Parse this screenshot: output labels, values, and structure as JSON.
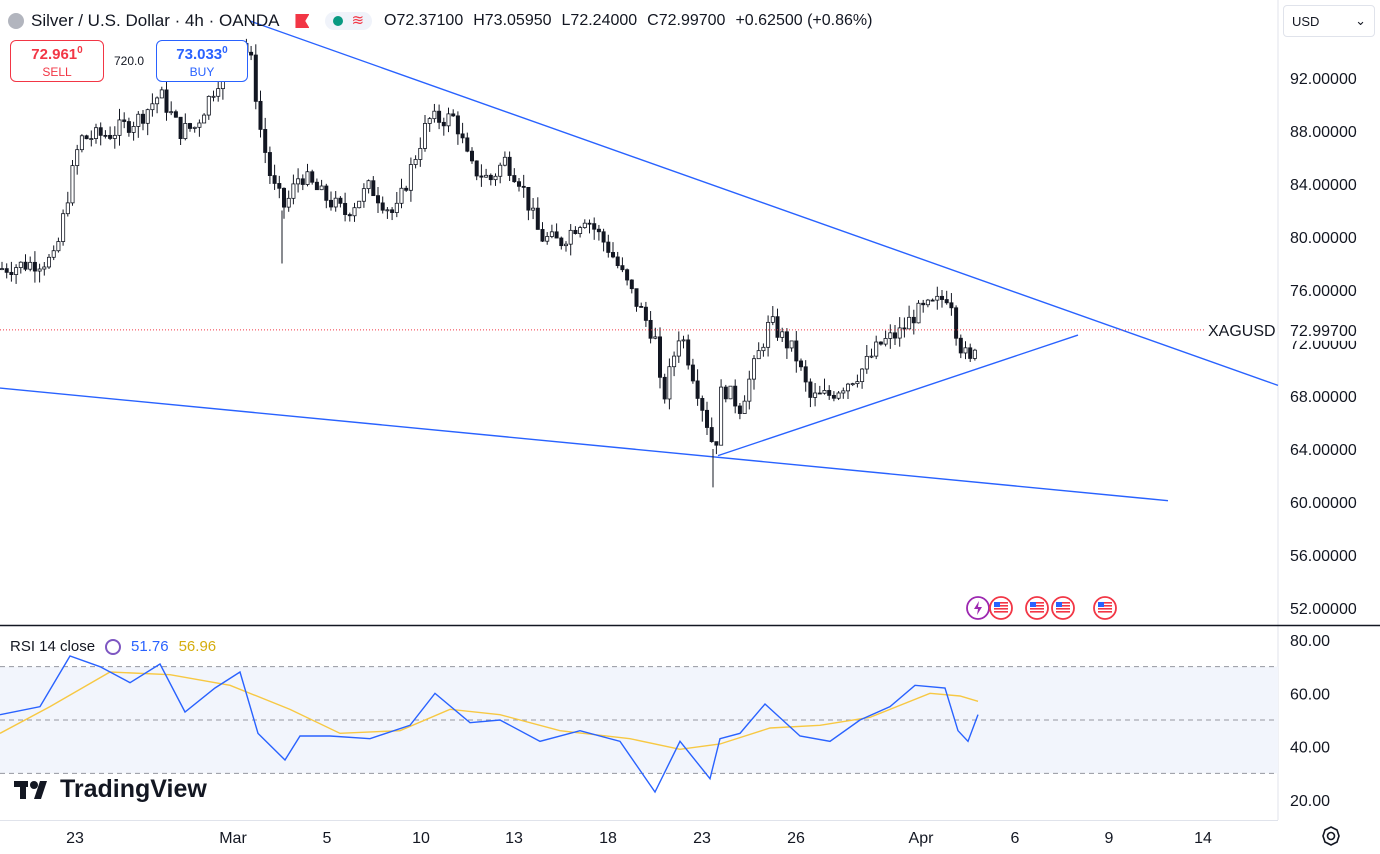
{
  "header": {
    "title": "Silver / U.S. Dollar · 4h · OANDA",
    "ohlc": [
      {
        "key": "O",
        "value": "72.37100"
      },
      {
        "key": "H",
        "value": "73.05950"
      },
      {
        "key": "L",
        "value": "72.24000"
      },
      {
        "key": "C",
        "value": "72.99700"
      }
    ],
    "change": "+0.62500 (+0.86%)"
  },
  "trade": {
    "sell_price": "72.961",
    "sell_price_sup": "0",
    "sell_label": "SELL",
    "spread": "720.0",
    "buy_price": "73.033",
    "buy_price_sup": "0",
    "buy_label": "BUY"
  },
  "currency": {
    "value": "USD"
  },
  "rsi": {
    "label": "RSI 14 close",
    "value": "51.76",
    "ma_value": "56.96"
  },
  "logo": {
    "text": "TradingView"
  },
  "colors": {
    "up": "#ffffff",
    "down": "#131722",
    "trendline": "#2962ff",
    "rsi_line": "#2962ff",
    "rsi_ma": "#f7c843",
    "last_price_line": "#f23645"
  },
  "chart_data": [
    {
      "type": "candlestick",
      "symbol": "XAGUSD",
      "last_price_label": "72.99700",
      "y_ticks": [
        "92.00000",
        "88.00000",
        "84.00000",
        "80.00000",
        "76.00000",
        "72.00000",
        "68.00000",
        "64.00000",
        "60.00000",
        "56.00000",
        "52.00000"
      ],
      "ylim": [
        51.5,
        96.5
      ],
      "x_ticks": [
        "23",
        "Mar",
        "5",
        "10",
        "13",
        "18",
        "23",
        "26",
        "Apr",
        "6",
        "9",
        "14"
      ],
      "close_path": [
        {
          "t": 0,
          "v": 77.6
        },
        {
          "t": 30,
          "v": 78.0
        },
        {
          "t": 55,
          "v": 78.3
        },
        {
          "t": 70,
          "v": 84.0
        },
        {
          "t": 80,
          "v": 87.4
        },
        {
          "t": 110,
          "v": 87.8
        },
        {
          "t": 140,
          "v": 89.0
        },
        {
          "t": 160,
          "v": 90.8
        },
        {
          "t": 180,
          "v": 88.0
        },
        {
          "t": 195,
          "v": 88.3
        },
        {
          "t": 215,
          "v": 91.4
        },
        {
          "t": 240,
          "v": 95.2
        },
        {
          "t": 252,
          "v": 93.0
        },
        {
          "t": 260,
          "v": 88.3
        },
        {
          "t": 272,
          "v": 84.0
        },
        {
          "t": 285,
          "v": 82.2
        },
        {
          "t": 300,
          "v": 84.8
        },
        {
          "t": 320,
          "v": 83.3
        },
        {
          "t": 345,
          "v": 81.8
        },
        {
          "t": 370,
          "v": 83.8
        },
        {
          "t": 395,
          "v": 81.6
        },
        {
          "t": 412,
          "v": 85.4
        },
        {
          "t": 428,
          "v": 88.8
        },
        {
          "t": 455,
          "v": 89.0
        },
        {
          "t": 470,
          "v": 85.3
        },
        {
          "t": 490,
          "v": 84.3
        },
        {
          "t": 505,
          "v": 85.8
        },
        {
          "t": 520,
          "v": 84.3
        },
        {
          "t": 540,
          "v": 80.0
        },
        {
          "t": 560,
          "v": 79.6
        },
        {
          "t": 585,
          "v": 81.6
        },
        {
          "t": 610,
          "v": 79.0
        },
        {
          "t": 630,
          "v": 76.0
        },
        {
          "t": 655,
          "v": 72.4
        },
        {
          "t": 662,
          "v": 67.3
        },
        {
          "t": 680,
          "v": 73.0
        },
        {
          "t": 700,
          "v": 67.9
        },
        {
          "t": 715,
          "v": 63.8
        },
        {
          "t": 722,
          "v": 68.8
        },
        {
          "t": 740,
          "v": 67.2
        },
        {
          "t": 770,
          "v": 73.6
        },
        {
          "t": 795,
          "v": 71.2
        },
        {
          "t": 810,
          "v": 67.8
        },
        {
          "t": 830,
          "v": 68.1
        },
        {
          "t": 860,
          "v": 69.8
        },
        {
          "t": 880,
          "v": 71.9
        },
        {
          "t": 900,
          "v": 72.8
        },
        {
          "t": 915,
          "v": 74.2
        },
        {
          "t": 935,
          "v": 74.9
        },
        {
          "t": 950,
          "v": 75.8
        },
        {
          "t": 958,
          "v": 72.2
        },
        {
          "t": 970,
          "v": 70.4
        },
        {
          "t": 978,
          "v": 72.99
        }
      ]
    },
    {
      "type": "line",
      "name": "RSI 14 close",
      "y_ticks": [
        "80.00",
        "60.00",
        "40.00",
        "20.00"
      ],
      "ylim": [
        17,
        83
      ],
      "bands": [
        70,
        50,
        30
      ],
      "series": [
        {
          "name": "RSI",
          "points": [
            {
              "t": 0,
              "v": 52
            },
            {
              "t": 40,
              "v": 55
            },
            {
              "t": 70,
              "v": 74
            },
            {
              "t": 100,
              "v": 70
            },
            {
              "t": 130,
              "v": 64
            },
            {
              "t": 160,
              "v": 71
            },
            {
              "t": 185,
              "v": 53
            },
            {
              "t": 215,
              "v": 62
            },
            {
              "t": 240,
              "v": 68
            },
            {
              "t": 258,
              "v": 45
            },
            {
              "t": 285,
              "v": 35
            },
            {
              "t": 300,
              "v": 44
            },
            {
              "t": 330,
              "v": 44
            },
            {
              "t": 370,
              "v": 43
            },
            {
              "t": 410,
              "v": 48
            },
            {
              "t": 435,
              "v": 60
            },
            {
              "t": 470,
              "v": 49
            },
            {
              "t": 500,
              "v": 50
            },
            {
              "t": 540,
              "v": 42
            },
            {
              "t": 580,
              "v": 46
            },
            {
              "t": 620,
              "v": 42
            },
            {
              "t": 655,
              "v": 23
            },
            {
              "t": 680,
              "v": 42
            },
            {
              "t": 710,
              "v": 28
            },
            {
              "t": 720,
              "v": 43
            },
            {
              "t": 740,
              "v": 45
            },
            {
              "t": 765,
              "v": 56
            },
            {
              "t": 800,
              "v": 44
            },
            {
              "t": 830,
              "v": 42
            },
            {
              "t": 860,
              "v": 50
            },
            {
              "t": 890,
              "v": 55
            },
            {
              "t": 915,
              "v": 63
            },
            {
              "t": 945,
              "v": 62
            },
            {
              "t": 958,
              "v": 46
            },
            {
              "t": 968,
              "v": 42
            },
            {
              "t": 978,
              "v": 52
            }
          ]
        },
        {
          "name": "RSI MA",
          "points": [
            {
              "t": 0,
              "v": 45
            },
            {
              "t": 50,
              "v": 55
            },
            {
              "t": 110,
              "v": 68
            },
            {
              "t": 170,
              "v": 67
            },
            {
              "t": 230,
              "v": 63
            },
            {
              "t": 290,
              "v": 54
            },
            {
              "t": 340,
              "v": 45
            },
            {
              "t": 400,
              "v": 46
            },
            {
              "t": 450,
              "v": 54
            },
            {
              "t": 500,
              "v": 52
            },
            {
              "t": 560,
              "v": 46
            },
            {
              "t": 630,
              "v": 43
            },
            {
              "t": 680,
              "v": 39
            },
            {
              "t": 720,
              "v": 41
            },
            {
              "t": 770,
              "v": 47
            },
            {
              "t": 820,
              "v": 48
            },
            {
              "t": 870,
              "v": 51
            },
            {
              "t": 930,
              "v": 60
            },
            {
              "t": 960,
              "v": 59
            },
            {
              "t": 978,
              "v": 57
            }
          ]
        }
      ]
    }
  ]
}
